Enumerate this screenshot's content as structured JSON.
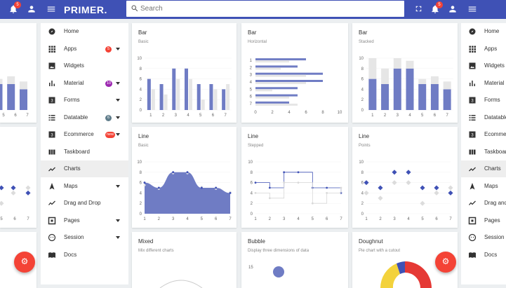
{
  "app": {
    "brand": "PRIMER."
  },
  "topbar": {
    "search_placeholder": "Search",
    "notifications_left": "5",
    "notifications_right": "5"
  },
  "sidebar": {
    "items": [
      {
        "label": "Home",
        "icon": "compass-icon"
      },
      {
        "label": "Apps",
        "icon": "grid-icon",
        "badge": "5",
        "badge_color": "#f44336",
        "caret": true
      },
      {
        "label": "Widgets",
        "icon": "image-icon"
      },
      {
        "label": "Material",
        "icon": "bar-chart-icon",
        "badge": "10",
        "badge_color": "#9c27b0",
        "caret": true
      },
      {
        "label": "Forms",
        "icon": "forms-icon",
        "caret": true
      },
      {
        "label": "Datatable",
        "icon": "list-icon",
        "badge": "6",
        "badge_color": "#607d8b",
        "caret": true
      },
      {
        "label": "Ecommerce",
        "icon": "cart-icon",
        "badge": "new",
        "badge_color": "#f44336",
        "caret": true
      },
      {
        "label": "Taskboard",
        "icon": "columns-icon"
      },
      {
        "label": "Charts",
        "icon": "line-chart-icon",
        "active": true
      },
      {
        "label": "Maps",
        "icon": "navigation-icon",
        "caret": true
      },
      {
        "label": "Drag and Drop",
        "icon": "timeline-icon"
      },
      {
        "label": "Pages",
        "icon": "pages-icon",
        "caret": true
      },
      {
        "label": "Session",
        "icon": "face-icon",
        "caret": true
      },
      {
        "label": "Docs",
        "icon": "book-icon"
      }
    ]
  },
  "sidebar_right": {
    "items": [
      "Home",
      "Apps",
      "Widgets",
      "Material",
      "Forms",
      "Datatable",
      "Ecommerce",
      "Taskboard",
      "Charts",
      "Maps",
      "Drag and",
      "Pages",
      "Session",
      "Docs"
    ]
  },
  "colors": {
    "primary": "#3f51b5",
    "series": "#6f7cc4",
    "series_dark": "#3f51b5",
    "grey_series": "#e6e6e6",
    "accent": "#f44336"
  },
  "cards": {
    "bar_basic": {
      "title": "Bar",
      "subtitle": "Basic"
    },
    "bar_horizontal": {
      "title": "Bar",
      "subtitle": "Horizontal"
    },
    "bar_stacked": {
      "title": "Bar",
      "subtitle": "Stacked"
    },
    "line_basic": {
      "title": "Line",
      "subtitle": "Basic"
    },
    "line_stepped": {
      "title": "Line",
      "subtitle": "Stepped"
    },
    "line_points": {
      "title": "Line",
      "subtitle": "Points"
    },
    "mixed": {
      "title": "Mixed",
      "subtitle": "Mix different charts"
    },
    "bubble": {
      "title": "Bubble",
      "subtitle": "Display three dimensions of data"
    },
    "doughnut": {
      "title": "Doughnut",
      "subtitle": "Pie chart with a cutout"
    }
  },
  "chart_data": [
    {
      "id": "bar_basic",
      "type": "bar",
      "categories": [
        "1",
        "2",
        "3",
        "4",
        "5",
        "6",
        "7"
      ],
      "series": [
        {
          "values": [
            6,
            5,
            8,
            8,
            5,
            5,
            4
          ]
        },
        {
          "values": [
            4,
            3,
            6,
            6,
            2,
            4,
            5
          ]
        }
      ],
      "ylim": [
        0,
        10
      ],
      "yticks": [
        "0",
        "2",
        "4",
        "6",
        "8",
        "10"
      ]
    },
    {
      "id": "bar_horizontal",
      "type": "bar",
      "orientation": "horizontal",
      "categories": [
        "1",
        "2",
        "3",
        "4",
        "5",
        "6",
        "7"
      ],
      "series": [
        {
          "values": [
            6,
            5,
            8,
            8,
            5,
            5,
            4
          ]
        },
        {
          "values": [
            4,
            3,
            6,
            6,
            2,
            4,
            5
          ]
        }
      ],
      "xlim": [
        0,
        10
      ],
      "xticks": [
        "0",
        "2",
        "4",
        "6",
        "8",
        "10"
      ]
    },
    {
      "id": "bar_stacked",
      "type": "bar",
      "stacked": true,
      "categories": [
        "1",
        "2",
        "3",
        "4",
        "5",
        "6",
        "7"
      ],
      "series": [
        {
          "values": [
            6,
            5,
            8,
            8,
            5,
            5,
            4
          ]
        },
        {
          "values": [
            4,
            3,
            2,
            1.5,
            1,
            1.5,
            1.5
          ]
        }
      ],
      "ylim": [
        0,
        10
      ],
      "yticks": [
        "0",
        "2",
        "4",
        "6",
        "8",
        "10"
      ]
    },
    {
      "id": "line_basic",
      "type": "area",
      "x": [
        1,
        2,
        3,
        4,
        5,
        6,
        7
      ],
      "series": [
        {
          "values": [
            6,
            5,
            8,
            8,
            5,
            5,
            4
          ]
        },
        {
          "values": [
            5.5,
            4.8,
            7.8,
            7.8,
            5.2,
            4.8,
            4.2
          ]
        }
      ],
      "ylim": [
        0,
        10
      ],
      "yticks": [
        "0",
        "2",
        "4",
        "6",
        "8",
        "10"
      ]
    },
    {
      "id": "line_stepped",
      "type": "line",
      "stepped": true,
      "x": [
        1,
        2,
        3,
        4,
        5,
        6,
        7
      ],
      "series": [
        {
          "values": [
            6,
            5,
            8,
            8,
            5,
            5,
            4
          ]
        },
        {
          "values": [
            4,
            3,
            6,
            6,
            2,
            4,
            5
          ]
        }
      ],
      "ylim": [
        0,
        10
      ],
      "yticks": [
        "0",
        "2",
        "4",
        "6",
        "8",
        "10"
      ]
    },
    {
      "id": "line_points",
      "type": "scatter",
      "x": [
        1,
        2,
        3,
        4,
        5,
        6,
        7
      ],
      "series": [
        {
          "values": [
            6,
            5,
            8,
            8,
            5,
            5,
            4
          ]
        },
        {
          "values": [
            4,
            3,
            6,
            6,
            2,
            4,
            5
          ]
        }
      ],
      "ylim": [
        0,
        10
      ],
      "yticks": [
        "0",
        "2",
        "4",
        "6",
        "8",
        "10"
      ]
    }
  ]
}
